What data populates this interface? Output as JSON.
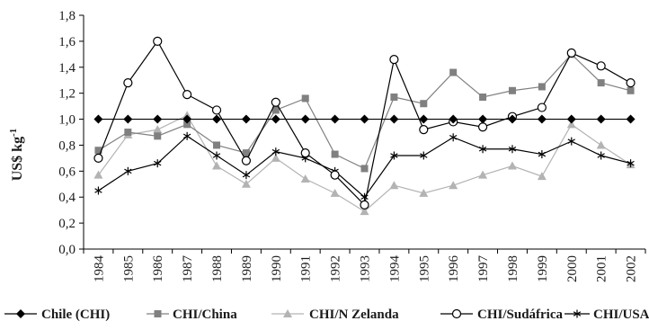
{
  "chart_data": {
    "type": "line",
    "title": "",
    "ylabel": "US$ kg",
    "ylabel_sup": "-1",
    "xlabel": "",
    "ylim": [
      0,
      1.8
    ],
    "yticks": [
      "0,0",
      "0,2",
      "0,4",
      "0,6",
      "0,8",
      "1,0",
      "1,2",
      "1,4",
      "1,6",
      "1,8"
    ],
    "categories": [
      "1984",
      "1985",
      "1986",
      "1987",
      "1988",
      "1989",
      "1990",
      "1991",
      "1992",
      "1993",
      "1994",
      "1995",
      "1996",
      "1997",
      "1998",
      "1999",
      "2000",
      "2001",
      "2002"
    ],
    "grid": false,
    "legend_position": "bottom",
    "series": [
      {
        "name": "Chile (CHI)",
        "marker": "diamond",
        "color": "#000000",
        "values": [
          1.0,
          1.0,
          1.0,
          1.0,
          1.0,
          1.0,
          1.0,
          1.0,
          1.0,
          1.0,
          1.0,
          1.0,
          1.0,
          1.0,
          1.0,
          1.0,
          1.0,
          1.0,
          1.0
        ]
      },
      {
        "name": "CHI/China",
        "marker": "square",
        "color": "#808080",
        "values": [
          0.76,
          0.9,
          0.87,
          0.96,
          0.8,
          0.74,
          1.07,
          1.16,
          0.73,
          0.62,
          1.17,
          1.12,
          1.36,
          1.17,
          1.22,
          1.25,
          1.5,
          1.28,
          1.22
        ]
      },
      {
        "name": "CHI/N Zelanda",
        "marker": "triangle",
        "color": "#b3b3b3",
        "values": [
          0.57,
          0.88,
          0.92,
          1.03,
          0.64,
          0.5,
          0.7,
          0.54,
          0.43,
          0.29,
          0.49,
          0.43,
          0.49,
          0.57,
          0.64,
          0.56,
          0.96,
          0.8,
          0.65
        ]
      },
      {
        "name": "CHI/Sudáfrica",
        "marker": "circle",
        "color": "#000000",
        "values": [
          0.7,
          1.28,
          1.6,
          1.19,
          1.07,
          0.68,
          1.13,
          0.74,
          0.57,
          0.34,
          1.46,
          0.92,
          0.98,
          0.94,
          1.02,
          1.09,
          1.51,
          1.41,
          1.28
        ]
      },
      {
        "name": "CHI/USA",
        "marker": "asterisk",
        "color": "#000000",
        "values": [
          0.45,
          0.6,
          0.66,
          0.87,
          0.72,
          0.57,
          0.75,
          0.7,
          0.6,
          0.4,
          0.72,
          0.72,
          0.86,
          0.77,
          0.77,
          0.73,
          0.83,
          0.72,
          0.66
        ]
      }
    ]
  }
}
